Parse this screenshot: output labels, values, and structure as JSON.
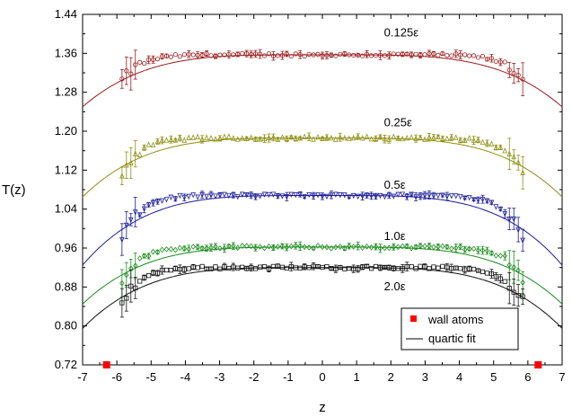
{
  "chart_data": {
    "type": "scatter",
    "xlabel": "z",
    "ylabel": "T(z)",
    "xlim": [
      -7,
      7
    ],
    "ylim": [
      0.72,
      1.44
    ],
    "x_ticks": [
      "-7",
      "-6",
      "-5",
      "-4",
      "-3",
      "-2",
      "-1",
      "0",
      "1",
      "2",
      "3",
      "4",
      "5",
      "6",
      "7"
    ],
    "y_ticks": [
      "0.72",
      "0.80",
      "0.88",
      "0.96",
      "1.04",
      "1.12",
      "1.20",
      "1.28",
      "1.36",
      "1.44"
    ],
    "legend": {
      "placement": "bottom-right",
      "entries": [
        {
          "label": "wall atoms",
          "symbol": "square",
          "color": "#ff0000"
        },
        {
          "label": "quartic fit",
          "symbol": "line",
          "color": "#000000"
        }
      ]
    },
    "wall_atoms": {
      "x": [
        -6.3,
        6.3
      ],
      "y": [
        0.72,
        0.72
      ],
      "color": "#ff0000"
    },
    "series": [
      {
        "label": "0.125ε",
        "color": "#9b1c1c",
        "marker": "circle",
        "center": 1.357,
        "edge": 1.3,
        "fit_center": 1.357,
        "fit_edge": 1.25,
        "x_range": [
          -5.85,
          5.85
        ],
        "label_at": [
          1.8,
          1.395
        ]
      },
      {
        "label": "0.25ε",
        "color": "#8f8f14",
        "marker": "triangle-up",
        "center": 1.186,
        "edge": 1.11,
        "fit_center": 1.186,
        "fit_edge": 1.065,
        "x_range": [
          -5.85,
          5.85
        ],
        "label_at": [
          1.8,
          1.21
        ]
      },
      {
        "label": "0.5ε",
        "color": "#1a1a9b",
        "marker": "triangle-down",
        "center": 1.068,
        "edge": 0.975,
        "fit_center": 1.068,
        "fit_edge": 0.925,
        "x_range": [
          -5.85,
          5.85
        ],
        "label_at": [
          1.8,
          1.082
        ]
      },
      {
        "label": "1.0ε",
        "color": "#1c8c1c",
        "marker": "diamond",
        "center": 0.962,
        "edge": 0.89,
        "fit_center": 0.962,
        "fit_edge": 0.845,
        "x_range": [
          -5.85,
          5.85
        ],
        "label_at": [
          1.8,
          0.977
        ]
      },
      {
        "label": "2.0ε",
        "color": "#111111",
        "marker": "square",
        "center": 0.92,
        "edge": 0.845,
        "fit_center": 0.92,
        "fit_edge": 0.795,
        "x_range": [
          -5.85,
          5.85
        ],
        "label_at": [
          1.8,
          0.873
        ]
      }
    ]
  }
}
